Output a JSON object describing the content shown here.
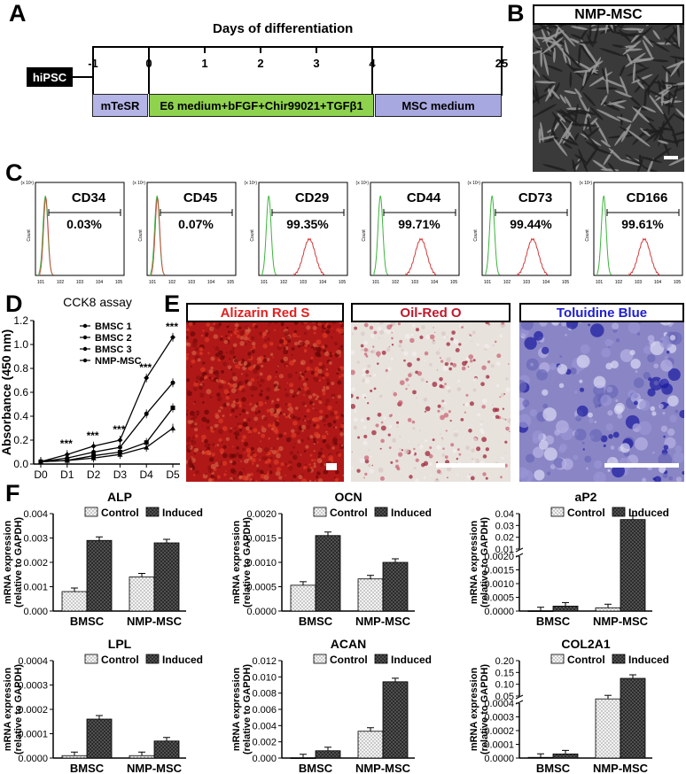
{
  "panels": {
    "A": "A",
    "B": "B",
    "C": "C",
    "D": "D",
    "E": "E",
    "F": "F"
  },
  "timeline": {
    "title": "Days of differentiation",
    "start_label": "hiPSC",
    "ticks": [
      "-1",
      "0",
      "1",
      "2",
      "3",
      "4",
      "25"
    ],
    "stages": [
      {
        "label": "mTeSR",
        "color": "#b4b4e6"
      },
      {
        "label": "E6 medium+bFGF+Chir99021+TGFβ1",
        "color": "#8fd24e"
      },
      {
        "label": "MSC medium",
        "color": "#a8a8e0"
      }
    ]
  },
  "micrograph_b": {
    "title": "NMP-MSC"
  },
  "flow": {
    "markers": [
      {
        "name": "CD34",
        "pct": "0.03%",
        "positive": false
      },
      {
        "name": "CD45",
        "pct": "0.07%",
        "positive": false
      },
      {
        "name": "CD29",
        "pct": "99.35%",
        "positive": true
      },
      {
        "name": "CD44",
        "pct": "99.71%",
        "positive": true
      },
      {
        "name": "CD73",
        "pct": "99.44%",
        "positive": true
      },
      {
        "name": "CD166",
        "pct": "99.61%",
        "positive": true
      }
    ],
    "colors": {
      "control": "#3cb43c",
      "stained": "#d23c3c"
    }
  },
  "stains": [
    {
      "name": "Alizarin Red S",
      "color": "#e02020"
    },
    {
      "name": "Oil-Red O",
      "color": "#c0182c"
    },
    {
      "name": "Toluidine Blue",
      "color": "#2020cc"
    }
  ],
  "chart_data": [
    {
      "type": "line",
      "title": "CCK8 assay",
      "ylabel": "Absorbance (450 nm)",
      "x": [
        "D0",
        "D1",
        "D2",
        "D3",
        "D4",
        "D5"
      ],
      "ylim": [
        0,
        1.2
      ],
      "yticks": [
        "0.0",
        "0.2",
        "0.4",
        "0.6",
        "0.8",
        "1.0",
        "1.2"
      ],
      "series": [
        {
          "name": "BMSC 1",
          "values": [
            0.02,
            0.05,
            0.1,
            0.14,
            0.42,
            0.68
          ]
        },
        {
          "name": "BMSC 2",
          "values": [
            0.02,
            0.03,
            0.07,
            0.1,
            0.18,
            0.47
          ]
        },
        {
          "name": "BMSC 3",
          "values": [
            0.02,
            0.03,
            0.05,
            0.08,
            0.14,
            0.3
          ]
        },
        {
          "name": "NMP-MSC",
          "values": [
            0.02,
            0.08,
            0.15,
            0.2,
            0.72,
            1.06
          ]
        }
      ],
      "annotations": [
        "***",
        "***",
        "***",
        "***",
        "***"
      ]
    },
    {
      "type": "bar",
      "title": "ALP",
      "categories": [
        "BMSC",
        "NMP-MSC"
      ],
      "series": [
        {
          "name": "Control",
          "values": [
            0.0008,
            0.0014
          ]
        },
        {
          "name": "Induced",
          "values": [
            0.0029,
            0.0028
          ]
        }
      ],
      "ylim": [
        0,
        0.004
      ],
      "yticks": [
        "0.000",
        "0.001",
        "0.002",
        "0.003",
        "0.004"
      ],
      "ylabel": "mRNA expression (relative to GAPDH)"
    },
    {
      "type": "bar",
      "title": "OCN",
      "categories": [
        "BMSC",
        "NMP-MSC"
      ],
      "series": [
        {
          "name": "Control",
          "values": [
            0.00053,
            0.00066
          ]
        },
        {
          "name": "Induced",
          "values": [
            0.00155,
            0.001
          ]
        }
      ],
      "ylim": [
        0,
        0.002
      ],
      "yticks": [
        "0.0000",
        "0.0005",
        "0.0010",
        "0.0015",
        "0.0020"
      ],
      "ylabel": "mRNA expression (relative to GAPDH)"
    },
    {
      "type": "bar",
      "title": "aP2",
      "categories": [
        "BMSC",
        "NMP-MSC"
      ],
      "series": [
        {
          "name": "Control",
          "values": [
            1e-05,
            0.00012
          ]
        },
        {
          "name": "Induced",
          "values": [
            0.00018,
            0.035
          ]
        }
      ],
      "ylim_lower": [
        0,
        0.002
      ],
      "ylim_upper": [
        0.01,
        0.04
      ],
      "yticks_lower": [
        "0.0000",
        "0.0005",
        "0.0010",
        "0.0015",
        "0.0020"
      ],
      "yticks_upper": [
        "0.01",
        "0.02",
        "0.03",
        "0.04"
      ],
      "ylabel": "mRNA expression (relative to GAPDH)"
    },
    {
      "type": "bar",
      "title": "LPL",
      "categories": [
        "BMSC",
        "NMP-MSC"
      ],
      "series": [
        {
          "name": "Control",
          "values": [
            1e-05,
            1e-05
          ]
        },
        {
          "name": "Induced",
          "values": [
            0.00016,
            7e-05
          ]
        }
      ],
      "ylim": [
        0,
        0.0004
      ],
      "yticks": [
        "0.0000",
        "0.0001",
        "0.0002",
        "0.0003",
        "0.0004"
      ],
      "ylabel": "mRNA expression (relative to GAPDH)"
    },
    {
      "type": "bar",
      "title": "ACAN",
      "categories": [
        "BMSC",
        "NMP-MSC"
      ],
      "series": [
        {
          "name": "Control",
          "values": [
            3e-05,
            0.0033
          ]
        },
        {
          "name": "Induced",
          "values": [
            0.0009,
            0.0094
          ]
        }
      ],
      "ylim": [
        0,
        0.012
      ],
      "yticks": [
        "0.000",
        "0.002",
        "0.004",
        "0.006",
        "0.008",
        "0.010",
        "0.012"
      ],
      "ylabel": "mRNA expression (relative to GAPDH)"
    },
    {
      "type": "bar",
      "title": "COL2A1",
      "categories": [
        "BMSC",
        "NMP-MSC"
      ],
      "series": [
        {
          "name": "Control",
          "values": [
            5e-06,
            0.038
          ]
        },
        {
          "name": "Induced",
          "values": [
            3e-05,
            0.125
          ]
        }
      ],
      "ylim_lower": [
        0,
        0.0004
      ],
      "ylim_upper": [
        0.05,
        0.2
      ],
      "yticks_lower": [
        "0.0000",
        "0.0001",
        "0.0002",
        "0.0003",
        "0.0004"
      ],
      "yticks_upper": [
        "0.05",
        "0.10",
        "0.15",
        "0.20"
      ],
      "ylabel": "mRNA expression (relative to GAPDH)"
    }
  ]
}
